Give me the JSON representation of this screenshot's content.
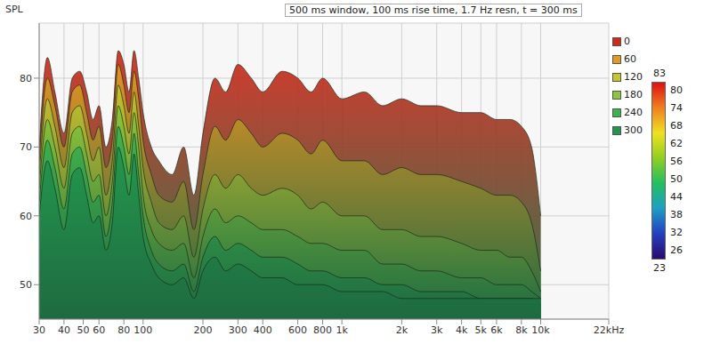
{
  "chart_data": {
    "type": "area",
    "title": "500 ms window, 100 ms rise time, 1.7 Hz resn, t = 300 ms",
    "y_label": "SPL",
    "log": "x",
    "grid": true,
    "xlim": [
      30,
      22000
    ],
    "xticks": [
      30,
      40,
      50,
      60,
      80,
      100,
      200,
      300,
      400,
      600,
      800,
      {
        "value": 1000,
        "label": "1k"
      },
      {
        "value": 2000,
        "label": "2k"
      },
      {
        "value": 3000,
        "label": "3k"
      },
      {
        "value": 4000,
        "label": "4k"
      },
      {
        "value": 5000,
        "label": "5k"
      },
      {
        "value": 6000,
        "label": "6k"
      },
      {
        "value": 8000,
        "label": "8k"
      },
      {
        "value": 10000,
        "label": "10k"
      },
      {
        "value": 22000,
        "label": "22kHz"
      }
    ],
    "ylim": [
      45,
      88
    ],
    "yticks": [
      50,
      60,
      70,
      80
    ],
    "x": [
      30,
      33,
      36,
      40,
      44,
      48,
      52,
      56,
      60,
      65,
      70,
      75,
      80,
      85,
      90,
      95,
      100,
      110,
      120,
      140,
      160,
      180,
      200,
      230,
      260,
      300,
      350,
      400,
      500,
      600,
      700,
      800,
      1000,
      1300,
      1600,
      2000,
      2500,
      3000,
      4000,
      5000,
      6000,
      7000,
      8000,
      9000,
      10000
    ],
    "series": [
      {
        "name": "0",
        "color": "#d02a1c",
        "values": [
          70,
          83,
          78,
          72,
          80,
          81,
          78,
          74,
          76,
          70,
          74,
          84,
          82,
          78,
          84,
          80,
          75,
          70,
          68,
          66,
          70,
          63,
          72,
          80,
          78,
          82,
          80,
          78,
          81,
          80,
          78,
          80,
          77,
          78,
          76,
          77,
          76,
          76,
          75,
          75,
          74,
          74,
          73,
          70,
          60
        ]
      },
      {
        "name": "60",
        "color": "#e49a22",
        "values": [
          68,
          80,
          76,
          70,
          78,
          79,
          75,
          71,
          73,
          67,
          71,
          82,
          79,
          75,
          81,
          77,
          71,
          66,
          63,
          62,
          65,
          58,
          66,
          73,
          71,
          74,
          72,
          70,
          72,
          71,
          69,
          71,
          68,
          68,
          66,
          67,
          66,
          66,
          65,
          64,
          63,
          63,
          62,
          59,
          52
        ]
      },
      {
        "name": "120",
        "color": "#c8c42e",
        "values": [
          66,
          77,
          73,
          67,
          75,
          76,
          72,
          68,
          70,
          63,
          68,
          79,
          76,
          72,
          78,
          73,
          67,
          62,
          59,
          58,
          60,
          54,
          61,
          66,
          64,
          66,
          64,
          63,
          64,
          63,
          61,
          62,
          60,
          60,
          58,
          58,
          57,
          57,
          56,
          55,
          55,
          54,
          54,
          52,
          49
        ]
      },
      {
        "name": "180",
        "color": "#8cc63a",
        "values": [
          64,
          74,
          70,
          64,
          72,
          73,
          69,
          65,
          66,
          60,
          65,
          76,
          73,
          69,
          75,
          70,
          63,
          58,
          56,
          55,
          56,
          51,
          57,
          61,
          59,
          60,
          59,
          58,
          58,
          57,
          56,
          56,
          55,
          55,
          53,
          53,
          52,
          52,
          51,
          51,
          50,
          50,
          50,
          49,
          48
        ]
      },
      {
        "name": "240",
        "color": "#3cb44e",
        "values": [
          62,
          71,
          67,
          61,
          69,
          70,
          66,
          62,
          63,
          57,
          62,
          73,
          70,
          66,
          72,
          66,
          60,
          55,
          53,
          52,
          53,
          49,
          54,
          57,
          55,
          56,
          55,
          54,
          54,
          53,
          52,
          52,
          51,
          51,
          50,
          50,
          49,
          49,
          49,
          48,
          48,
          48,
          48,
          48,
          47
        ]
      },
      {
        "name": "300",
        "color": "#22964e",
        "values": [
          60,
          68,
          64,
          58,
          66,
          67,
          63,
          59,
          60,
          55,
          59,
          70,
          67,
          63,
          69,
          63,
          57,
          53,
          51,
          50,
          51,
          48,
          52,
          54,
          52,
          53,
          52,
          51,
          51,
          50,
          50,
          50,
          49,
          49,
          49,
          48,
          48,
          48,
          48,
          48,
          48,
          48,
          48,
          48,
          48
        ]
      }
    ],
    "colorbar": {
      "range": [
        23,
        83
      ],
      "ticks": [
        26,
        32,
        38,
        44,
        50,
        56,
        62,
        68,
        74,
        80
      ]
    }
  }
}
